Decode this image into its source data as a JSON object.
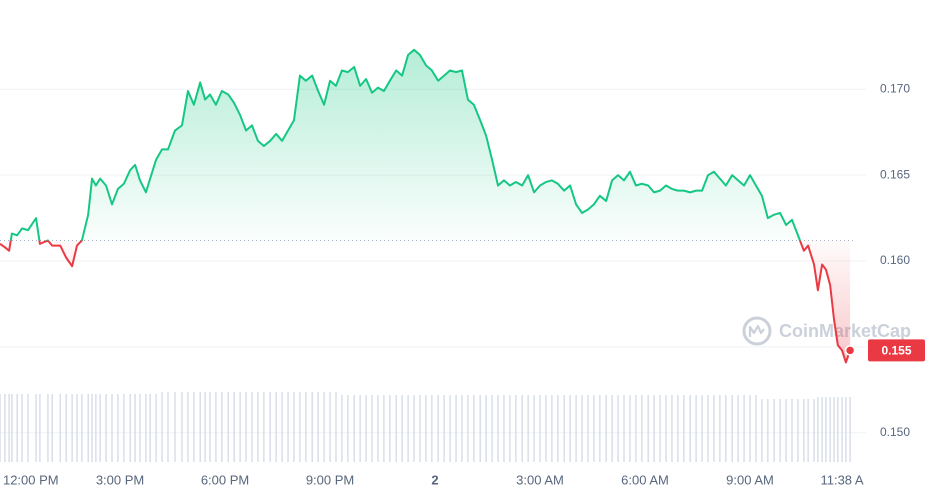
{
  "chart_data": {
    "type": "line",
    "watermark": "CoinMarketCap",
    "x": [
      11.57,
      11.71,
      11.83,
      11.91,
      12.06,
      12.2,
      12.37,
      12.6,
      12.71,
      12.94,
      13.06,
      13.29,
      13.46,
      13.63,
      13.77,
      13.91,
      14.09,
      14.2,
      14.31,
      14.43,
      14.6,
      14.77,
      14.94,
      15.11,
      15.29,
      15.43,
      15.57,
      15.74,
      15.86,
      16.03,
      16.2,
      16.37,
      16.57,
      16.77,
      16.94,
      17.11,
      17.29,
      17.43,
      17.57,
      17.74,
      17.91,
      18.09,
      18.26,
      18.43,
      18.6,
      18.77,
      18.94,
      19.11,
      19.29,
      19.46,
      19.63,
      19.8,
      19.97,
      20.14,
      20.31,
      20.49,
      20.66,
      20.83,
      21.0,
      21.17,
      21.34,
      21.51,
      21.69,
      21.86,
      22.03,
      22.2,
      22.37,
      22.54,
      22.71,
      22.89,
      23.06,
      23.23,
      23.4,
      23.57,
      23.74,
      23.91,
      24.09,
      24.26,
      24.43,
      24.6,
      24.77,
      24.94,
      25.11,
      25.29,
      25.46,
      25.63,
      25.8,
      25.97,
      26.14,
      26.31,
      26.49,
      26.66,
      26.83,
      27.0,
      27.17,
      27.34,
      27.51,
      27.69,
      27.86,
      28.03,
      28.2,
      28.37,
      28.54,
      28.71,
      28.89,
      29.06,
      29.23,
      29.4,
      29.57,
      29.74,
      29.91,
      30.09,
      30.26,
      30.43,
      30.6,
      30.77,
      30.94,
      31.11,
      31.29,
      31.46,
      31.63,
      31.8,
      31.97,
      32.14,
      32.31,
      32.49,
      32.66,
      32.83,
      33.0,
      33.17,
      33.34,
      33.51,
      33.69,
      33.86,
      34.03,
      34.2,
      34.37,
      34.54,
      34.66,
      34.83,
      34.94,
      35.06,
      35.17,
      35.29,
      35.4,
      35.51,
      35.63,
      35.74,
      35.86
    ],
    "values": [
      0.161,
      0.1608,
      0.1606,
      0.1616,
      0.1615,
      0.1619,
      0.1618,
      0.1625,
      0.161,
      0.1612,
      0.1609,
      0.1609,
      0.1602,
      0.1597,
      0.1609,
      0.1612,
      0.1627,
      0.1648,
      0.1644,
      0.1648,
      0.1644,
      0.1633,
      0.1642,
      0.1645,
      0.1653,
      0.1656,
      0.1647,
      0.164,
      0.1648,
      0.1659,
      0.1665,
      0.1665,
      0.1676,
      0.1679,
      0.1699,
      0.1691,
      0.1704,
      0.1694,
      0.1697,
      0.1691,
      0.1699,
      0.1697,
      0.1692,
      0.1685,
      0.1676,
      0.1679,
      0.167,
      0.1667,
      0.167,
      0.1674,
      0.167,
      0.1676,
      0.1682,
      0.1708,
      0.1705,
      0.1708,
      0.1699,
      0.1691,
      0.1705,
      0.1702,
      0.1711,
      0.171,
      0.1713,
      0.1702,
      0.1706,
      0.1698,
      0.1701,
      0.1699,
      0.1705,
      0.1711,
      0.1708,
      0.172,
      0.1723,
      0.172,
      0.1714,
      0.1711,
      0.1705,
      0.1708,
      0.1711,
      0.171,
      0.1711,
      0.1694,
      0.1691,
      0.1682,
      0.1673,
      0.1659,
      0.1644,
      0.1647,
      0.1644,
      0.1646,
      0.1644,
      0.165,
      0.164,
      0.1644,
      0.1646,
      0.1647,
      0.1645,
      0.1641,
      0.1644,
      0.1633,
      0.1628,
      0.163,
      0.1633,
      0.1638,
      0.1635,
      0.1647,
      0.165,
      0.1647,
      0.1652,
      0.1644,
      0.1645,
      0.1644,
      0.164,
      0.1641,
      0.1644,
      0.1642,
      0.1641,
      0.1641,
      0.164,
      0.1641,
      0.1641,
      0.165,
      0.1652,
      0.1648,
      0.1644,
      0.165,
      0.1647,
      0.1644,
      0.165,
      0.1644,
      0.1638,
      0.1625,
      0.1627,
      0.1628,
      0.1621,
      0.1624,
      0.1615,
      0.1606,
      0.1609,
      0.1598,
      0.1583,
      0.1598,
      0.1595,
      0.1586,
      0.1566,
      0.1551,
      0.1548,
      0.1541,
      0.1548
    ],
    "volume": [
      68,
      68,
      68,
      68,
      68,
      68,
      68,
      68,
      68,
      68,
      68,
      68,
      68,
      68,
      68,
      68,
      68,
      68,
      68,
      68,
      68,
      68,
      68,
      68,
      68,
      68,
      68,
      68,
      68,
      68,
      70,
      70,
      70,
      70,
      70,
      70,
      70,
      70,
      70,
      70,
      70,
      70,
      70,
      70,
      70,
      70,
      70,
      70,
      70,
      70,
      70,
      70,
      70,
      70,
      70,
      70,
      70,
      70,
      70,
      70,
      67,
      67,
      67,
      67,
      67,
      67,
      67,
      67,
      67,
      67,
      67,
      67,
      67,
      67,
      67,
      67,
      67,
      67,
      67,
      67,
      67,
      67,
      67,
      67,
      67,
      67,
      67,
      67,
      67,
      67,
      67,
      67,
      67,
      67,
      67,
      67,
      67,
      67,
      67,
      67,
      67,
      67,
      67,
      67,
      67,
      67,
      67,
      67,
      67,
      67,
      67,
      67,
      67,
      67,
      67,
      67,
      67,
      67,
      67,
      67,
      67,
      67,
      67,
      67,
      67,
      67,
      67,
      67,
      67,
      67,
      63,
      63,
      63,
      63,
      63,
      63,
      63,
      63,
      63,
      63,
      65,
      65,
      65,
      65,
      65,
      65,
      65,
      65,
      65
    ],
    "volume_lim": [
      0,
      100
    ],
    "baseline": 0.1612,
    "up_color": "#16c784",
    "down_color": "#ea3943",
    "volume_color": "#cfd6e4",
    "price_tag": {
      "value": 0.1548,
      "label": "0.155"
    },
    "xlim": [
      11.57,
      36
    ],
    "ylim": [
      0.1483,
      0.1752
    ],
    "xticks": [
      {
        "value": 12,
        "label": "12:00 PM"
      },
      {
        "value": 15,
        "label": "3:00 PM"
      },
      {
        "value": 18,
        "label": "6:00 PM"
      },
      {
        "value": 21,
        "label": "9:00 PM"
      },
      {
        "value": 24,
        "label": "2"
      },
      {
        "value": 27,
        "label": "3:00 AM"
      },
      {
        "value": 30,
        "label": "6:00 AM"
      },
      {
        "value": 33,
        "label": "9:00 AM"
      },
      {
        "value": 35.63,
        "label": "11:38 A"
      }
    ],
    "yticks": [
      {
        "value": 0.15,
        "label": "0.150"
      },
      0.155,
      {
        "value": 0.16,
        "label": "0.160"
      },
      0.165,
      {
        "value": 0.17,
        "label": "0.170"
      }
    ],
    "grid": true
  }
}
